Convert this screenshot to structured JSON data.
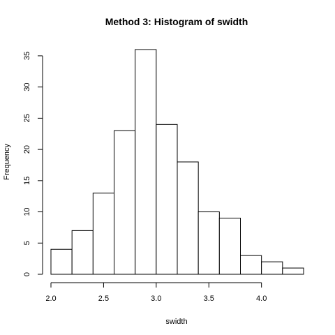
{
  "chart_data": {
    "type": "bar",
    "title": "Method 3: Histogram of swidth",
    "xlabel": "swidth",
    "ylabel": "Frequency",
    "bins": [
      {
        "start": 2.0,
        "end": 2.2,
        "count": 4
      },
      {
        "start": 2.2,
        "end": 2.4,
        "count": 7
      },
      {
        "start": 2.4,
        "end": 2.6,
        "count": 13
      },
      {
        "start": 2.6,
        "end": 2.8,
        "count": 23
      },
      {
        "start": 2.8,
        "end": 3.0,
        "count": 36
      },
      {
        "start": 3.0,
        "end": 3.2,
        "count": 24
      },
      {
        "start": 3.2,
        "end": 3.4,
        "count": 18
      },
      {
        "start": 3.4,
        "end": 3.6,
        "count": 10
      },
      {
        "start": 3.6,
        "end": 3.8,
        "count": 9
      },
      {
        "start": 3.8,
        "end": 4.0,
        "count": 3
      },
      {
        "start": 4.0,
        "end": 4.2,
        "count": 2
      },
      {
        "start": 4.2,
        "end": 4.4,
        "count": 1
      }
    ],
    "xticks": [
      "2.0",
      "2.5",
      "3.0",
      "3.5",
      "4.0"
    ],
    "yticks": [
      "0",
      "5",
      "10",
      "15",
      "20",
      "25",
      "30",
      "35"
    ],
    "xlim": [
      2.0,
      4.4
    ],
    "ylim": [
      0,
      36
    ],
    "grid": false
  }
}
